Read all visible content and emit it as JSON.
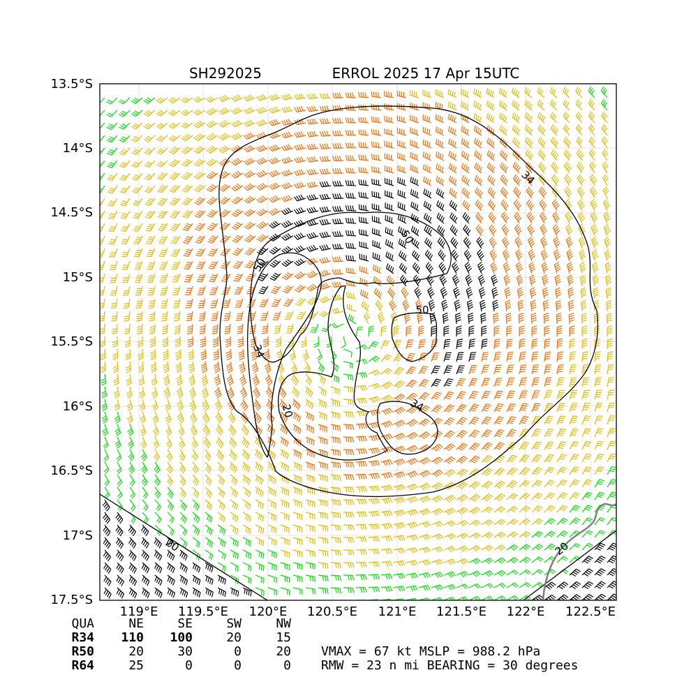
{
  "header": {
    "storm_id": "SH292025",
    "storm_title": "ERROL 2025 17 Apr 15UTC"
  },
  "map": {
    "lat_ticks": [
      "13.5°S",
      "14°S",
      "14.5°S",
      "15°S",
      "15.5°S",
      "16°S",
      "16.5°S",
      "17°S",
      "17.5°S"
    ],
    "lon_ticks": [
      "119°E",
      "119.5°E",
      "120°E",
      "120.5°E",
      "121°E",
      "121.5°E",
      "122°E",
      "122.5°E"
    ],
    "contour_labels": [
      "34",
      "50",
      "50",
      "34",
      "34",
      "34",
      "20",
      "20",
      "20"
    ],
    "barb_colors": {
      "below_34": "#00e400",
      "gale_34_50": "#e8b800",
      "storm_50_64": "#ff6a00",
      "hurricane_64": "#000000"
    },
    "contour_color": "#000000",
    "coast_color": "#808080"
  },
  "wind_radii_table": {
    "headers": [
      "QUA",
      "NE",
      "SE",
      "SW",
      "NW"
    ],
    "rows": [
      [
        "R34",
        "110",
        "100",
        "20",
        "15"
      ],
      [
        "R50",
        "20",
        "30",
        "0",
        "20"
      ],
      [
        "R64",
        "25",
        "0",
        "0",
        "0"
      ]
    ]
  },
  "summary": {
    "line1": "VMAX =  67 kt MSLP = 988.2 hPa",
    "line2": "RMW =  23 n mi BEARING =  30 degrees"
  }
}
